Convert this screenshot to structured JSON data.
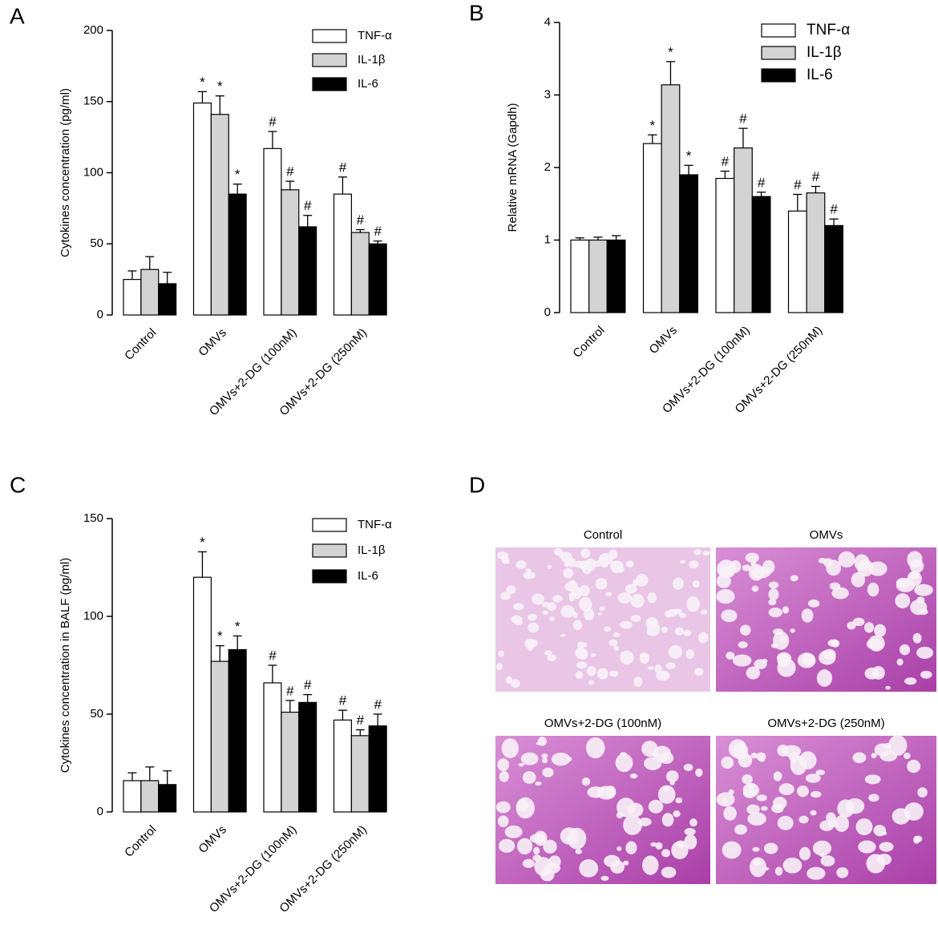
{
  "chart_data": [
    {
      "type": "bar",
      "panel_label": "A",
      "ylabel": "Cytokines concentration (pg/ml)",
      "categories": [
        "Control",
        "OMVs",
        "OMVs+2-DG (100nM)",
        "OMVs+2-DG (250nM)"
      ],
      "ylim": [
        0,
        200
      ],
      "yticks": [
        0,
        50,
        100,
        150,
        200
      ],
      "legend": "upper right",
      "series": [
        {
          "name": "TNF-α",
          "color": "#ffffff",
          "values": [
            25,
            149,
            117,
            85
          ],
          "errors": [
            6,
            8,
            12,
            12
          ],
          "annotations": [
            null,
            "*",
            "#",
            "#"
          ]
        },
        {
          "name": "IL-1β",
          "color": "#d3d3d3",
          "values": [
            32,
            141,
            88,
            58
          ],
          "errors": [
            9,
            13,
            6,
            2
          ],
          "annotations": [
            null,
            "*",
            "#",
            "#"
          ]
        },
        {
          "name": "IL-6",
          "color": "#000000",
          "values": [
            22,
            85,
            62,
            50
          ],
          "errors": [
            8,
            7,
            8,
            2
          ],
          "annotations": [
            null,
            "*",
            "#",
            "#"
          ]
        }
      ]
    },
    {
      "type": "bar",
      "panel_label": "B",
      "ylabel": "Relative mRNA (Gapdh)",
      "categories": [
        "Control",
        "OMVs",
        "OMVs+2-DG (100nM)",
        "OMVs+2-DG (250nM)"
      ],
      "ylim": [
        0,
        4
      ],
      "yticks": [
        0,
        1,
        2,
        3,
        4
      ],
      "legend": "upper right",
      "series": [
        {
          "name": "TNF-α",
          "color": "#ffffff",
          "values": [
            1.0,
            2.33,
            1.85,
            1.4
          ],
          "errors": [
            0.03,
            0.12,
            0.1,
            0.23
          ],
          "annotations": [
            null,
            "*",
            "#",
            "#"
          ]
        },
        {
          "name": "IL-1β",
          "color": "#d3d3d3",
          "values": [
            1.0,
            3.14,
            2.27,
            1.65
          ],
          "errors": [
            0.04,
            0.32,
            0.27,
            0.09
          ],
          "annotations": [
            null,
            "*",
            "#",
            "#"
          ]
        },
        {
          "name": "IL-6",
          "color": "#000000",
          "values": [
            1.0,
            1.9,
            1.6,
            1.2
          ],
          "errors": [
            0.06,
            0.13,
            0.06,
            0.09
          ],
          "annotations": [
            null,
            "*",
            "#",
            "#"
          ]
        }
      ]
    },
    {
      "type": "bar",
      "panel_label": "C",
      "ylabel": "Cytokines concentration in BALF (pg/ml)",
      "categories": [
        "Control",
        "OMVs",
        "OMVs+2-DG (100nM)",
        "OMVs+2-DG (250nM)"
      ],
      "ylim": [
        0,
        150
      ],
      "yticks": [
        0,
        50,
        100,
        150
      ],
      "legend": "upper right",
      "series": [
        {
          "name": "TNF-α",
          "color": "#ffffff",
          "values": [
            16,
            120,
            66,
            47
          ],
          "errors": [
            4,
            13,
            9,
            5
          ],
          "annotations": [
            null,
            "*",
            "#",
            "#"
          ]
        },
        {
          "name": "IL-1β",
          "color": "#d3d3d3",
          "values": [
            16,
            77,
            51,
            39
          ],
          "errors": [
            7,
            8,
            6,
            3
          ],
          "annotations": [
            null,
            "*",
            "#",
            "#"
          ]
        },
        {
          "name": "IL-6",
          "color": "#000000",
          "values": [
            14,
            83,
            56,
            44
          ],
          "errors": [
            7,
            7,
            4,
            6
          ],
          "annotations": [
            null,
            "*",
            "#",
            "#"
          ]
        }
      ]
    }
  ],
  "image_panel": {
    "panel_label": "D",
    "captions": [
      "Control",
      "OMVs",
      "OMVs+2-DG (100nM)",
      "OMVs+2-DG (250nM)"
    ]
  }
}
